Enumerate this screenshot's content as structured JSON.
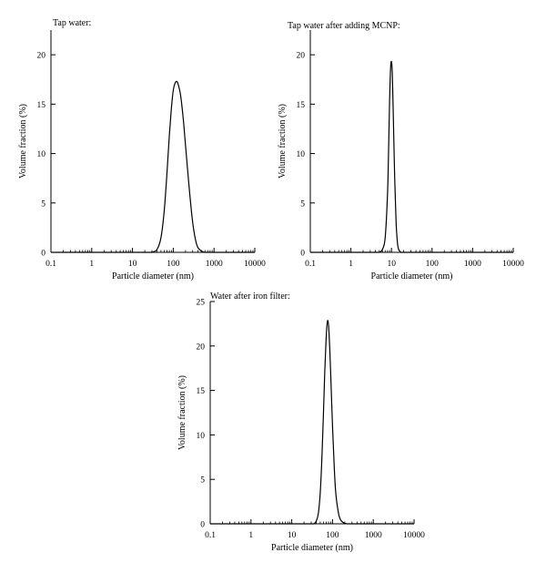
{
  "chart_data": [
    {
      "type": "line",
      "title": "Tap water:",
      "xlabel": "Particle diameter (nm)",
      "ylabel": "Volume fraction (%)",
      "x_scale": "log",
      "xlim": [
        0.1,
        10000
      ],
      "ylim": [
        0,
        22.5
      ],
      "x_ticks": [
        "0.1",
        "1",
        "10",
        "100",
        "1000",
        "10000"
      ],
      "y_ticks": [
        "0",
        "5",
        "10",
        "15",
        "20"
      ],
      "grid": false,
      "series": [
        {
          "color": "#000000",
          "x": [
            30,
            40,
            50,
            60,
            70,
            80,
            90,
            100,
            110,
            120,
            130,
            150,
            175,
            200,
            250,
            300,
            350,
            400,
            500,
            600
          ],
          "y": [
            0,
            0.3,
            1.5,
            4.2,
            8.0,
            11.8,
            14.6,
            16.4,
            17.1,
            17.3,
            17.1,
            16.0,
            13.6,
            10.8,
            6.2,
            3.0,
            1.3,
            0.5,
            0.1,
            0
          ]
        }
      ]
    },
    {
      "type": "line",
      "title": "Tap water after adding MCNP:",
      "xlabel": "Particle diameter (nm)",
      "ylabel": "Volume fraction (%)",
      "x_scale": "log",
      "xlim": [
        0.1,
        10000
      ],
      "ylim": [
        0,
        22.5
      ],
      "x_ticks": [
        "0.1",
        "1",
        "10",
        "100",
        "1000",
        "10000"
      ],
      "y_ticks": [
        "0",
        "5",
        "10",
        "15",
        "20"
      ],
      "grid": false,
      "series": [
        {
          "color": "#000000",
          "x": [
            5,
            6,
            7,
            8,
            8.5,
            9,
            9.5,
            10,
            10.5,
            11,
            12,
            13,
            14,
            15,
            17
          ],
          "y": [
            0,
            0.3,
            1.5,
            6.0,
            10.5,
            15.5,
            18.6,
            19.3,
            18.0,
            14.5,
            7.5,
            3.0,
            1.0,
            0.3,
            0
          ]
        }
      ]
    },
    {
      "type": "line",
      "title": "Water after iron filter:",
      "xlabel": "Particle diameter (nm)",
      "ylabel": "Volume fraction (%)",
      "x_scale": "log",
      "xlim": [
        0.1,
        10000
      ],
      "ylim": [
        0,
        25
      ],
      "x_ticks": [
        "0.1",
        "1",
        "10",
        "100",
        "1000",
        "10000"
      ],
      "y_ticks": [
        "0",
        "5",
        "10",
        "15",
        "20",
        "25"
      ],
      "grid": false,
      "series": [
        {
          "color": "#000000",
          "x": [
            35,
            40,
            45,
            50,
            55,
            60,
            65,
            70,
            75,
            80,
            85,
            90,
            100,
            110,
            120,
            140,
            160,
            190,
            230
          ],
          "y": [
            0,
            0.3,
            1.2,
            3.5,
            7.5,
            12.5,
            17.5,
            21.0,
            22.8,
            22.3,
            20.0,
            17.0,
            11.0,
            6.5,
            3.5,
            1.2,
            0.4,
            0.1,
            0
          ]
        }
      ]
    }
  ]
}
